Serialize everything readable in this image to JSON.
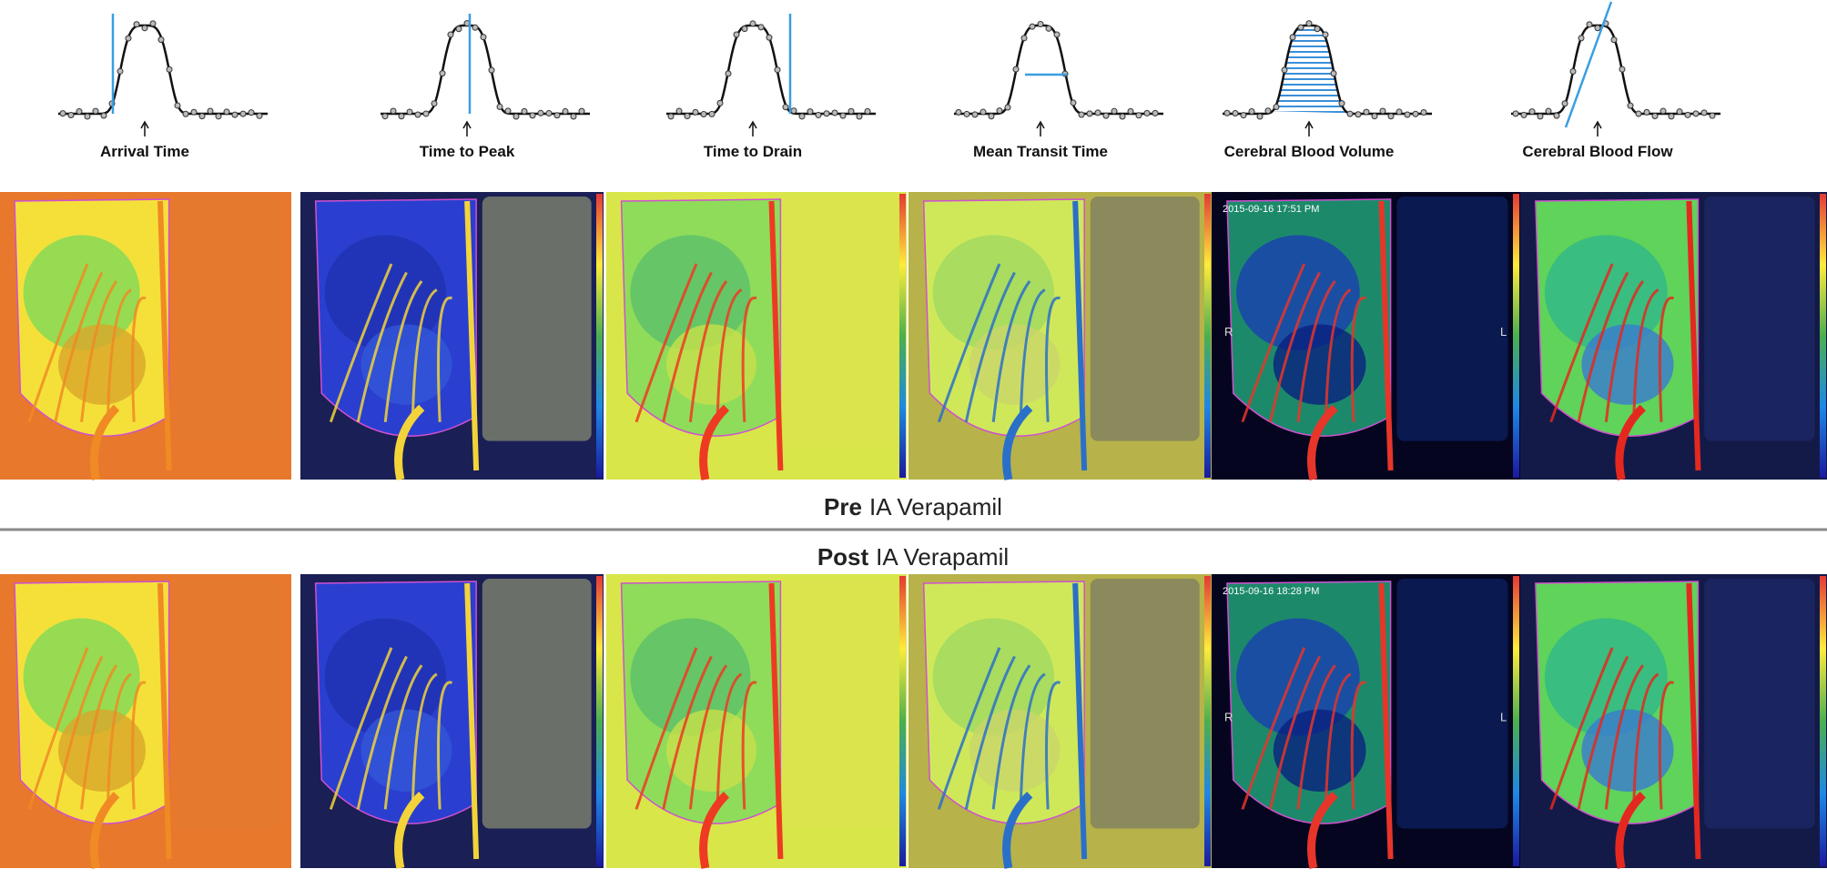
{
  "curves": [
    {
      "label": "Arrival Time"
    },
    {
      "label": "Time to Peak"
    },
    {
      "label": "Time to Drain"
    },
    {
      "label": "Mean Transit Time"
    },
    {
      "label": "Cerebral Blood Volume"
    },
    {
      "label": "Cerebral Blood Flow"
    }
  ],
  "rows": [
    {
      "prefix": "Pre",
      "suffix": "IA Verapamil",
      "timestamp": "2015-09-16 17:51 PM"
    },
    {
      "prefix": "Post",
      "suffix": "IA Verapamil",
      "timestamp": "2015-09-16 18:28 PM"
    }
  ],
  "side_labels": {
    "right": "R",
    "left": "L"
  }
}
